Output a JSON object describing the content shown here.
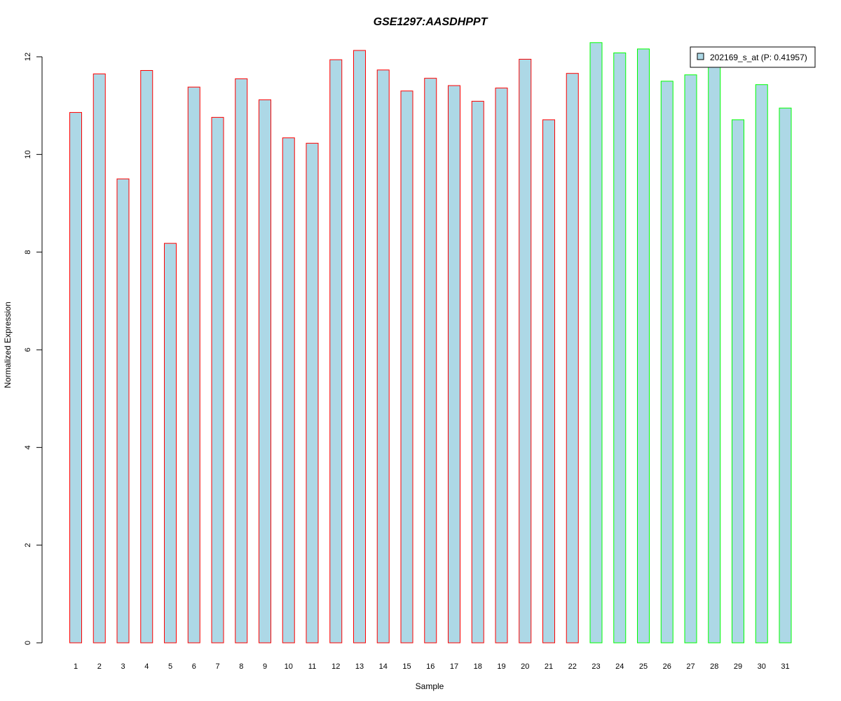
{
  "chart_data": {
    "type": "bar",
    "title": "GSE1297:AASDHPPT",
    "xlabel": "Sample",
    "ylabel": "Normalized Expression",
    "ylim": [
      0,
      12
    ],
    "y_ticks": [
      0,
      2,
      4,
      6,
      8,
      10,
      12
    ],
    "grid": false,
    "legend_position": "top-right",
    "categories": [
      "1",
      "2",
      "3",
      "4",
      "5",
      "6",
      "7",
      "8",
      "9",
      "10",
      "11",
      "12",
      "13",
      "14",
      "15",
      "16",
      "17",
      "18",
      "19",
      "20",
      "21",
      "22",
      "23",
      "24",
      "25",
      "26",
      "27",
      "28",
      "29",
      "30",
      "31"
    ],
    "series": [
      {
        "name": "202169_s_at (P: 0.41957)",
        "values": [
          10.86,
          11.65,
          9.5,
          11.72,
          8.18,
          11.38,
          10.76,
          11.55,
          11.12,
          10.34,
          10.23,
          11.94,
          12.13,
          11.73,
          11.3,
          11.56,
          11.41,
          11.09,
          11.36,
          11.95,
          10.71,
          11.66,
          12.29,
          12.08,
          12.16,
          11.5,
          11.63,
          11.9,
          10.71,
          11.43,
          10.95
        ]
      }
    ],
    "groups": [
      {
        "samples": "1-22",
        "border_color": "#ff0000"
      },
      {
        "samples": "23-31",
        "border_color": "#00ff00"
      }
    ],
    "colors": {
      "bar_fill": "#add8e6",
      "title": "#0000cc",
      "group1_border": "#ff0000",
      "group2_border": "#00ff00"
    }
  }
}
